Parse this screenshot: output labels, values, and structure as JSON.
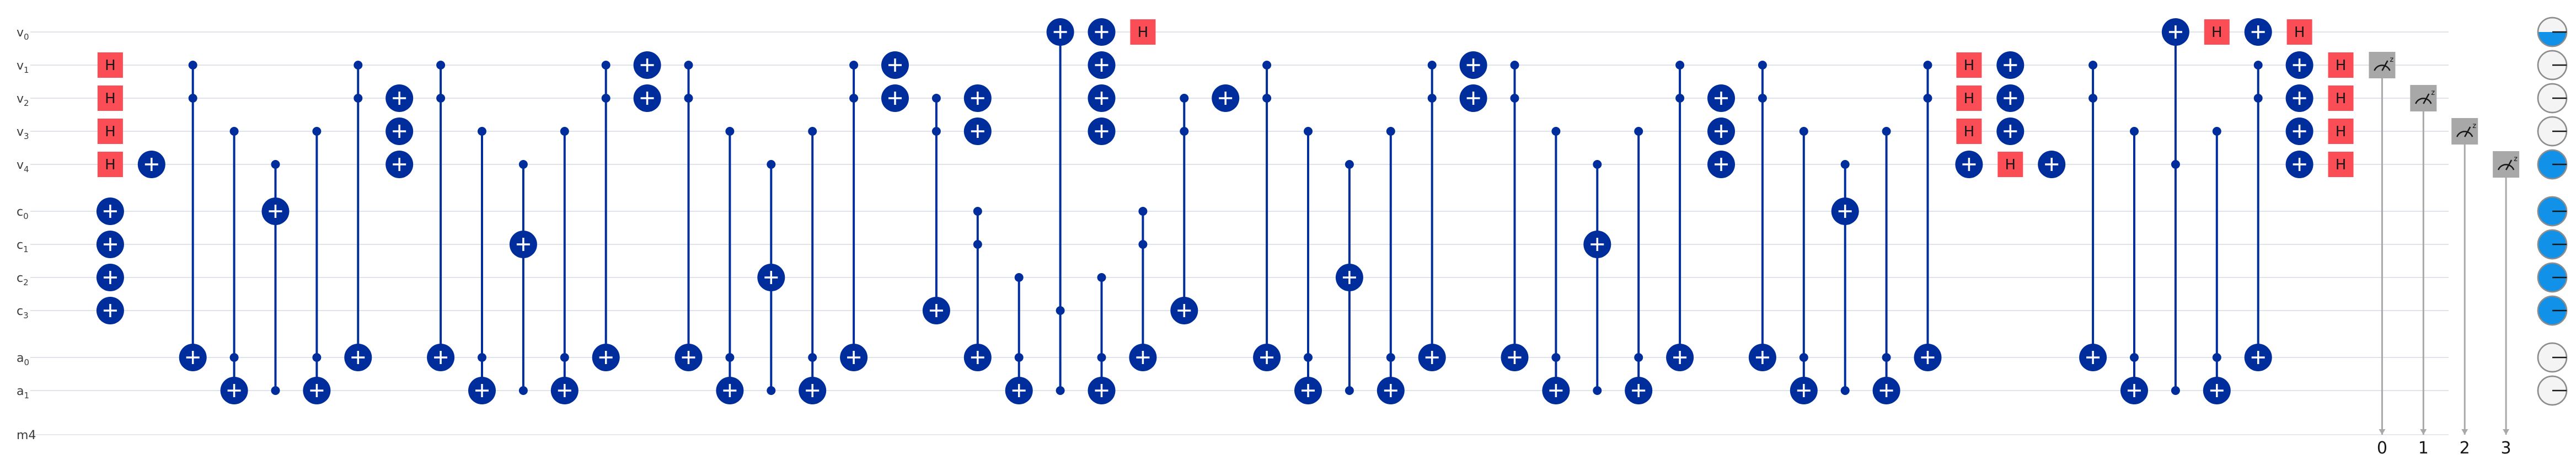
{
  "registers": [
    {
      "name": "v",
      "sub": "0"
    },
    {
      "name": "v",
      "sub": "1"
    },
    {
      "name": "v",
      "sub": "2"
    },
    {
      "name": "v",
      "sub": "3"
    },
    {
      "name": "v",
      "sub": "4"
    },
    {
      "name": "c",
      "sub": "0"
    },
    {
      "name": "c",
      "sub": "1"
    },
    {
      "name": "c",
      "sub": "2"
    },
    {
      "name": "c",
      "sub": "3"
    },
    {
      "name": "a",
      "sub": "0"
    },
    {
      "name": "a",
      "sub": "1"
    },
    {
      "name": "m4",
      "sub": ""
    }
  ],
  "h_label": "H",
  "measure_labels": [
    "0",
    "1",
    "2",
    "3"
  ],
  "gates": [
    {
      "type": "H",
      "q": 1,
      "col": 1
    },
    {
      "type": "H",
      "q": 2,
      "col": 1
    },
    {
      "type": "H",
      "q": 3,
      "col": 1
    },
    {
      "type": "H",
      "q": 4,
      "col": 1
    },
    {
      "type": "X",
      "q": 5,
      "col": 1
    },
    {
      "type": "X",
      "q": 6,
      "col": 1
    },
    {
      "type": "X",
      "q": 7,
      "col": 1
    },
    {
      "type": "X",
      "q": 8,
      "col": 1
    },
    {
      "type": "X",
      "q": 4,
      "col": 2
    },
    {
      "type": "CX",
      "c": [
        1,
        2
      ],
      "t": 9,
      "col": 3
    },
    {
      "type": "CX",
      "c": [
        3,
        9
      ],
      "t": 10,
      "col": 4
    },
    {
      "type": "CX",
      "c": [
        4,
        10
      ],
      "t": 5,
      "col": 5
    },
    {
      "type": "CX",
      "c": [
        3,
        9
      ],
      "t": 10,
      "col": 6
    },
    {
      "type": "CX",
      "c": [
        1,
        2
      ],
      "t": 9,
      "col": 7
    },
    {
      "type": "X",
      "q": 2,
      "col": 8
    },
    {
      "type": "X",
      "q": 3,
      "col": 8
    },
    {
      "type": "X",
      "q": 4,
      "col": 8
    },
    {
      "type": "CX",
      "c": [
        1,
        2
      ],
      "t": 9,
      "col": 9
    },
    {
      "type": "CX",
      "c": [
        3,
        9
      ],
      "t": 10,
      "col": 10
    },
    {
      "type": "CX",
      "c": [
        4,
        10
      ],
      "t": 6,
      "col": 11
    },
    {
      "type": "CX",
      "c": [
        3,
        9
      ],
      "t": 10,
      "col": 12
    },
    {
      "type": "CX",
      "c": [
        1,
        2
      ],
      "t": 9,
      "col": 13
    },
    {
      "type": "X",
      "q": 1,
      "col": 14
    },
    {
      "type": "X",
      "q": 2,
      "col": 14
    },
    {
      "type": "CX",
      "c": [
        1,
        2
      ],
      "t": 9,
      "col": 15
    },
    {
      "type": "CX",
      "c": [
        3,
        9
      ],
      "t": 10,
      "col": 16
    },
    {
      "type": "CX",
      "c": [
        4,
        10
      ],
      "t": 7,
      "col": 17
    },
    {
      "type": "CX",
      "c": [
        3,
        9
      ],
      "t": 10,
      "col": 18
    },
    {
      "type": "CX",
      "c": [
        1,
        2
      ],
      "t": 9,
      "col": 19
    },
    {
      "type": "X",
      "q": 1,
      "col": 20
    },
    {
      "type": "X",
      "q": 2,
      "col": 20
    },
    {
      "type": "CX",
      "c": [
        2,
        3
      ],
      "t": 8,
      "col": 21
    },
    {
      "type": "CX",
      "c": [
        5,
        6
      ],
      "t": 9,
      "col": 22
    },
    {
      "type": "X",
      "q": 2,
      "col": 22
    },
    {
      "type": "X",
      "q": 3,
      "col": 22
    },
    {
      "type": "CX",
      "c": [
        7,
        9
      ],
      "t": 10,
      "col": 23
    },
    {
      "type": "CX",
      "c": [
        8,
        10
      ],
      "t": 0,
      "col": 24
    },
    {
      "type": "CX",
      "c": [
        7,
        9
      ],
      "t": 10,
      "col": 25
    },
    {
      "type": "X",
      "q": 0,
      "col": 25
    },
    {
      "type": "X",
      "q": 1,
      "col": 25
    },
    {
      "type": "X",
      "q": 2,
      "col": 25
    },
    {
      "type": "X",
      "q": 3,
      "col": 25
    },
    {
      "type": "H",
      "q": 0,
      "col": 26
    },
    {
      "type": "CX",
      "c": [
        5,
        6
      ],
      "t": 9,
      "col": 26
    },
    {
      "type": "CX",
      "c": [
        2,
        3
      ],
      "t": 8,
      "col": 27
    },
    {
      "type": "X",
      "q": 2,
      "col": 28
    },
    {
      "type": "CX",
      "c": [
        1,
        2
      ],
      "t": 9,
      "col": 29
    },
    {
      "type": "CX",
      "c": [
        3,
        9
      ],
      "t": 10,
      "col": 30
    },
    {
      "type": "CX",
      "c": [
        4,
        10
      ],
      "t": 7,
      "col": 31
    },
    {
      "type": "CX",
      "c": [
        3,
        9
      ],
      "t": 10,
      "col": 32
    },
    {
      "type": "CX",
      "c": [
        1,
        2
      ],
      "t": 9,
      "col": 33
    },
    {
      "type": "X",
      "q": 1,
      "col": 34
    },
    {
      "type": "X",
      "q": 2,
      "col": 34
    },
    {
      "type": "CX",
      "c": [
        1,
        2
      ],
      "t": 9,
      "col": 35
    },
    {
      "type": "CX",
      "c": [
        3,
        9
      ],
      "t": 10,
      "col": 36
    },
    {
      "type": "CX",
      "c": [
        4,
        10
      ],
      "t": 6,
      "col": 37
    },
    {
      "type": "CX",
      "c": [
        3,
        9
      ],
      "t": 10,
      "col": 38
    },
    {
      "type": "CX",
      "c": [
        1,
        2
      ],
      "t": 9,
      "col": 39
    },
    {
      "type": "X",
      "q": 2,
      "col": 40
    },
    {
      "type": "X",
      "q": 3,
      "col": 40
    },
    {
      "type": "X",
      "q": 4,
      "col": 40
    },
    {
      "type": "CX",
      "c": [
        1,
        2
      ],
      "t": 9,
      "col": 41
    },
    {
      "type": "CX",
      "c": [
        3,
        9
      ],
      "t": 10,
      "col": 42
    },
    {
      "type": "CX",
      "c": [
        4,
        10
      ],
      "t": 5,
      "col": 43
    },
    {
      "type": "CX",
      "c": [
        3,
        9
      ],
      "t": 10,
      "col": 44
    },
    {
      "type": "CX",
      "c": [
        1,
        2
      ],
      "t": 9,
      "col": 45
    },
    {
      "type": "H",
      "q": 1,
      "col": 46
    },
    {
      "type": "H",
      "q": 2,
      "col": 46
    },
    {
      "type": "H",
      "q": 3,
      "col": 46
    },
    {
      "type": "X",
      "q": 4,
      "col": 46
    },
    {
      "type": "X",
      "q": 1,
      "col": 47
    },
    {
      "type": "X",
      "q": 2,
      "col": 47
    },
    {
      "type": "X",
      "q": 3,
      "col": 47
    },
    {
      "type": "H",
      "q": 4,
      "col": 47
    },
    {
      "type": "X",
      "q": 4,
      "col": 48
    },
    {
      "type": "CX",
      "c": [
        1,
        2
      ],
      "t": 9,
      "col": 49
    },
    {
      "type": "CX",
      "c": [
        3,
        9
      ],
      "t": 10,
      "col": 50
    },
    {
      "type": "CX",
      "c": [
        4,
        10
      ],
      "t": 0,
      "col": 51
    },
    {
      "type": "H",
      "q": 0,
      "col": 52
    },
    {
      "type": "CX",
      "c": [
        3,
        9
      ],
      "t": 10,
      "col": 52
    },
    {
      "type": "CX",
      "c": [
        1,
        2
      ],
      "t": 9,
      "col": 53
    },
    {
      "type": "X",
      "q": 0,
      "col": 53
    },
    {
      "type": "H",
      "q": 0,
      "col": 54
    },
    {
      "type": "X",
      "q": 1,
      "col": 54
    },
    {
      "type": "X",
      "q": 2,
      "col": 54
    },
    {
      "type": "X",
      "q": 3,
      "col": 54
    },
    {
      "type": "X",
      "q": 4,
      "col": 54
    },
    {
      "type": "H",
      "q": 1,
      "col": 55
    },
    {
      "type": "H",
      "q": 2,
      "col": 55
    },
    {
      "type": "H",
      "q": 3,
      "col": 55
    },
    {
      "type": "H",
      "q": 4,
      "col": 55
    },
    {
      "type": "M",
      "q": 1,
      "col": 56,
      "bit": 0
    },
    {
      "type": "M",
      "q": 2,
      "col": 57,
      "bit": 1
    },
    {
      "type": "M",
      "q": 3,
      "col": 58,
      "bit": 2
    },
    {
      "type": "M",
      "q": 4,
      "col": 59,
      "bit": 3
    }
  ],
  "bloch": [
    {
      "q": 0,
      "fill": 0.5
    },
    {
      "q": 1,
      "fill": 0
    },
    {
      "q": 2,
      "fill": 0
    },
    {
      "q": 3,
      "fill": 0
    },
    {
      "q": 4,
      "fill": 1
    },
    {
      "q": 5,
      "fill": 1
    },
    {
      "q": 6,
      "fill": 1
    },
    {
      "q": 7,
      "fill": 1
    },
    {
      "q": 8,
      "fill": 1
    },
    {
      "q": 9,
      "fill": 0
    },
    {
      "q": 10,
      "fill": 0
    }
  ],
  "colors": {
    "gate_blue": "#002d9c",
    "h_red": "#fa4d56",
    "measure_gray": "#a8a8a8",
    "bloch_blue": "#1192e8"
  }
}
